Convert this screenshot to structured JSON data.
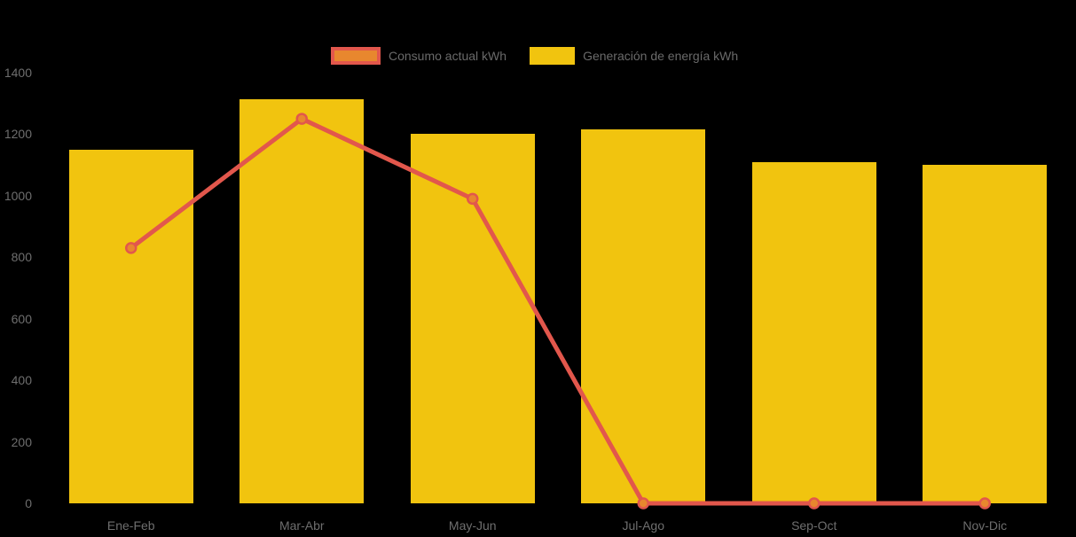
{
  "colors": {
    "background": "#000000",
    "bar": "#f1c40f",
    "line": "#e2574c",
    "point_fill": "#e8872e",
    "axis_text": "#6e6e6e",
    "legend_text": "#6a6a6a"
  },
  "legend": {
    "items": [
      {
        "label": "Consumo actual kWh",
        "series": "line"
      },
      {
        "label": "Generación de energía kWh",
        "series": "bar"
      }
    ]
  },
  "chart_data": {
    "type": "bar",
    "title": "",
    "xlabel": "",
    "ylabel": "",
    "categories": [
      "Ene-Feb",
      "Mar-Abr",
      "May-Jun",
      "Jul-Ago",
      "Sep-Oct",
      "Nov-Dic"
    ],
    "series": [
      {
        "name": "Consumo actual kWh",
        "type": "line",
        "values": [
          830,
          1250,
          990,
          0,
          0,
          0
        ]
      },
      {
        "name": "Generación de energía kWh",
        "type": "bar",
        "values": [
          1150,
          1315,
          1200,
          1215,
          1110,
          1100
        ]
      }
    ],
    "y_ticks": [
      0,
      200,
      400,
      600,
      800,
      1000,
      1200,
      1400
    ],
    "ylim": [
      0,
      1400
    ],
    "grid": false,
    "legend_position": "top"
  }
}
